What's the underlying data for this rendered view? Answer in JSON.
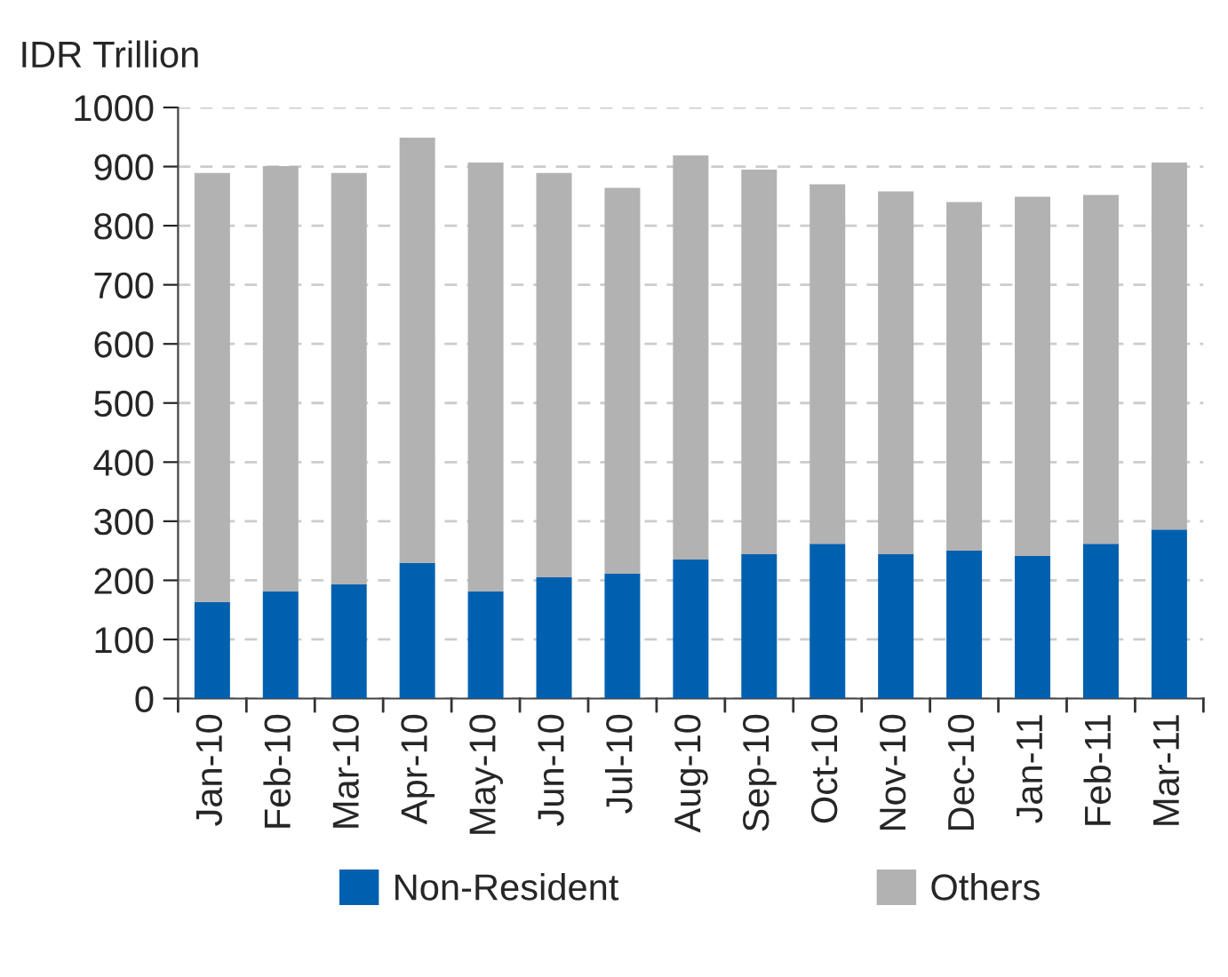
{
  "chart_data": {
    "type": "bar",
    "stacked": true,
    "ylabel": "IDR Trillion",
    "categories": [
      "Jan-10",
      "Feb-10",
      "Mar-10",
      "Apr-10",
      "May-10",
      "Jun-10",
      "Jul-10",
      "Aug-10",
      "Sep-10",
      "Oct-10",
      "Nov-10",
      "Dec-10",
      "Jan-11",
      "Feb-11",
      "Mar-11"
    ],
    "series": [
      {
        "name": "Non-Resident",
        "color": "#0060b0",
        "values": [
          163,
          181,
          193,
          229,
          181,
          205,
          211,
          235,
          244,
          262,
          244,
          250,
          241,
          262,
          286
        ]
      },
      {
        "name": "Others",
        "color": "#b2b2b2",
        "values": [
          726,
          720,
          696,
          720,
          726,
          684,
          653,
          684,
          651,
          608,
          614,
          590,
          608,
          590,
          621
        ]
      }
    ],
    "ylim": [
      0,
      1000
    ],
    "yticks": [
      0,
      100,
      200,
      300,
      400,
      500,
      600,
      700,
      800,
      900,
      1000
    ],
    "grid": "y",
    "legend": "bottom"
  }
}
